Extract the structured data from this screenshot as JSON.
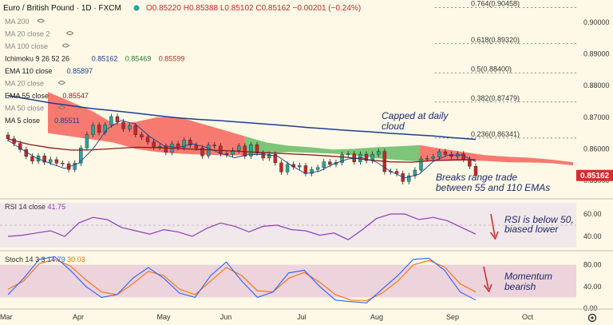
{
  "header": {
    "symbol": "Euro / British Pound",
    "interval": "1D",
    "exchange": "FXCM",
    "open": "O0.85220",
    "high": "H0.85388",
    "low": "L0.85102",
    "close": "C0.85162",
    "change": "−0.00201 (−0.24%)"
  },
  "indicators": [
    {
      "label": "MA 200",
      "value": "",
      "color": "#2962ff"
    },
    {
      "label": "MA 20 close 2",
      "value": "",
      "color": "#2962ff"
    },
    {
      "label": "MA 100 close",
      "value": "",
      "color": "#2962ff"
    },
    {
      "label": "Ichimoku 9 26 52 26",
      "value": "0.85162",
      "color": "#1e3d8c"
    },
    {
      "label": "",
      "value": "0.85469",
      "color": "#2e7d32"
    },
    {
      "label": "",
      "value": "0.85599",
      "color": "#c62828"
    },
    {
      "label": "EMA 110 close",
      "value": "0.85897",
      "color": "#1e3d8c"
    },
    {
      "label": "MA 20 close",
      "value": "",
      "color": "#2962ff"
    },
    {
      "label": "EMA 55 close",
      "value": "0.85547",
      "color": "#8b1a1a"
    },
    {
      "label": "MA 50 close",
      "value": "",
      "color": "#2962ff"
    },
    {
      "label": "MA 5 close",
      "value": "0.85511",
      "color": "#1e3d8c"
    }
  ],
  "fib_levels": [
    {
      "label": "0.764(0.90458)",
      "value": 0.90458
    },
    {
      "label": "0.618(0.89320)",
      "value": 0.8932
    },
    {
      "label": "0.5(0.88400)",
      "value": 0.884
    },
    {
      "label": "0.382(0.87479)",
      "value": 0.87479
    },
    {
      "label": "0.236(0.86341)",
      "value": 0.86341
    }
  ],
  "annotations": {
    "capped_line1": "Capped at daily",
    "capped_line2": "cloud",
    "breaks_line1": "Breaks range trade",
    "breaks_line2": "between 55 and 110 EMAs",
    "rsi_line1": "RSI is below 50,",
    "rsi_line2": "biased lower",
    "mom_line1": "Momentum",
    "mom_line2": "bearish"
  },
  "rsi_header": {
    "label": "RSI 14 close",
    "value": "41.75"
  },
  "stoch_header": {
    "label": "Stoch 14 3 3",
    "k": "14.79",
    "d": "30.03"
  },
  "price_label": "0.85162",
  "colors": {
    "up": "#26a69a",
    "down": "#c62828",
    "cloud_red": "#f6645c",
    "cloud_green": "#5cb85c",
    "ema110": "#1e3d8c",
    "ema55": "#8b1a1a",
    "rsi": "#8e3dba",
    "stoch_k": "#2962ff",
    "stoch_d": "#ff6d00",
    "price_tag": "#d32f2f"
  },
  "chart_data": {
    "type": "candlestick",
    "months": [
      "Mar",
      "Apr",
      "May",
      "Jun",
      "Jul",
      "Aug",
      "Sep",
      "Oct"
    ],
    "price_axis": {
      "ticks": [
        "0.90000",
        "0.89000",
        "0.88000",
        "0.87000",
        "0.86000",
        "0.85000"
      ],
      "ylim": [
        0.8475,
        0.9055
      ]
    },
    "series": {
      "close": [
        0.8632,
        0.8617,
        0.8598,
        0.8576,
        0.8561,
        0.8578,
        0.8558,
        0.8566,
        0.8555,
        0.8553,
        0.8535,
        0.8555,
        0.8603,
        0.8645,
        0.8675,
        0.8652,
        0.8676,
        0.8702,
        0.8685,
        0.8663,
        0.8673,
        0.8645,
        0.8637,
        0.8622,
        0.8606,
        0.8608,
        0.8589,
        0.8616,
        0.8604,
        0.8628,
        0.8612,
        0.8603,
        0.8578,
        0.8612,
        0.8609,
        0.8585,
        0.8582,
        0.8595,
        0.8609,
        0.8577,
        0.8613,
        0.8587,
        0.8571,
        0.8583,
        0.8556,
        0.8527,
        0.8551,
        0.8543,
        0.8547,
        0.8522,
        0.8535,
        0.8541,
        0.8559,
        0.8551,
        0.8557,
        0.8582,
        0.8584,
        0.8559,
        0.8583,
        0.8563,
        0.8583,
        0.8592,
        0.8528,
        0.8529,
        0.8522,
        0.8497,
        0.8515,
        0.8533,
        0.8568,
        0.857,
        0.8575,
        0.8591,
        0.8583,
        0.8576,
        0.8584,
        0.8567,
        0.8545,
        0.8516
      ],
      "ema110": [
        0.8768,
        0.8757,
        0.8745,
        0.8736,
        0.8727,
        0.872,
        0.8713,
        0.8705,
        0.8698,
        0.8693,
        0.8689,
        0.8684,
        0.8679,
        0.8674,
        0.8668,
        0.8663,
        0.8658,
        0.8654,
        0.8649,
        0.8645,
        0.8641,
        0.8635,
        0.863
      ],
      "ema55": [
        0.8631,
        0.8614,
        0.8603,
        0.8596,
        0.8597,
        0.8601,
        0.8605,
        0.8604,
        0.8601,
        0.8598,
        0.8595,
        0.8592,
        0.8588,
        0.8585,
        0.8582,
        0.8578,
        0.8573,
        0.8565,
        0.8559,
        0.8558,
        0.8563,
        0.8565,
        0.8566
      ],
      "ma5": [
        0.8627,
        0.8598,
        0.8571,
        0.8554,
        0.8538,
        0.8555,
        0.86,
        0.8663,
        0.869,
        0.8678,
        0.8639,
        0.861,
        0.8604,
        0.8616,
        0.8605,
        0.8586,
        0.8572,
        0.8582,
        0.8582,
        0.8578,
        0.8547,
        0.8522,
        0.853,
        0.8553,
        0.8568,
        0.8572,
        0.8558,
        0.8529,
        0.8508,
        0.852,
        0.856,
        0.858,
        0.8581,
        0.856
      ],
      "cloud_top": [
        0.878,
        0.875,
        0.872,
        0.868,
        0.8685,
        0.87,
        0.87,
        0.868,
        0.866,
        0.864,
        0.862,
        0.861,
        0.8605,
        0.8598,
        0.86,
        0.8605,
        0.8608,
        0.8612,
        0.86,
        0.859,
        0.858,
        0.8575,
        0.8572,
        0.8566,
        0.8558
      ],
      "cloud_bottom": [
        0.865,
        0.864,
        0.863,
        0.862,
        0.86,
        0.859,
        0.8585,
        0.8582,
        0.858,
        0.858,
        0.8585,
        0.859,
        0.8588,
        0.8585,
        0.858,
        0.857,
        0.8565,
        0.856,
        0.8562,
        0.8563,
        0.8562,
        0.8558,
        0.8557,
        0.8555,
        0.8548
      ]
    },
    "rsi": {
      "ticks": [
        "60.00",
        "40.00"
      ],
      "range": [
        30,
        70
      ],
      "band": [
        30,
        70
      ],
      "values": [
        40,
        41,
        43,
        45,
        40,
        52,
        57,
        55,
        48,
        45,
        42,
        46,
        44,
        40,
        47,
        52,
        49,
        44,
        49,
        50,
        46,
        45,
        41,
        43,
        37,
        46,
        56,
        60,
        60,
        55,
        57,
        54,
        48,
        42
      ]
    },
    "stoch": {
      "ticks": [
        "80.00",
        "40.00",
        "0.00"
      ],
      "range": [
        0,
        100
      ],
      "band": [
        20,
        80
      ],
      "k": [
        25,
        55,
        90,
        95,
        70,
        40,
        20,
        25,
        55,
        75,
        55,
        28,
        20,
        60,
        85,
        50,
        20,
        30,
        65,
        70,
        40,
        15,
        12,
        10,
        35,
        60,
        90,
        92,
        70,
        30,
        15
      ],
      "d": [
        35,
        50,
        82,
        90,
        78,
        52,
        30,
        25,
        45,
        68,
        60,
        35,
        25,
        50,
        75,
        60,
        32,
        30,
        55,
        66,
        48,
        25,
        15,
        14,
        28,
        50,
        80,
        88,
        76,
        45,
        30
      ]
    }
  }
}
